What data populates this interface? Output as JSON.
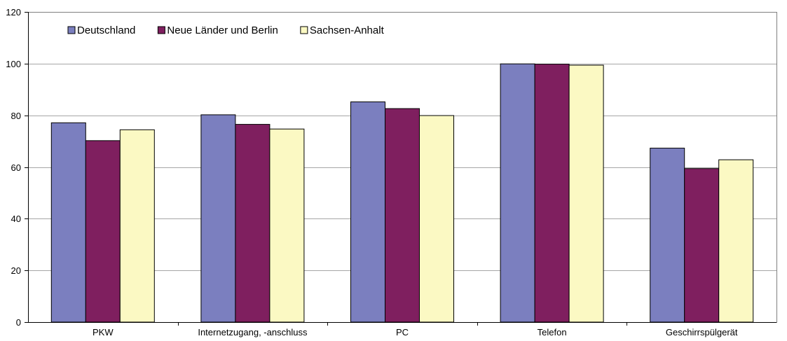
{
  "chart_data": {
    "type": "bar",
    "title": "",
    "xlabel": "",
    "ylabel": "",
    "ylim": [
      0,
      120
    ],
    "yticks": [
      0,
      20,
      40,
      60,
      80,
      100,
      120
    ],
    "grid": true,
    "legend_position": "top-left",
    "categories": [
      "PKW",
      "Internetzugang, -anschluss",
      "PC",
      "Telefon",
      "Geschirrspülgerät"
    ],
    "series": [
      {
        "name": "Deutschland",
        "color": "#7b7fbf",
        "values": [
          77.1,
          80.2,
          85.2,
          99.9,
          67.3
        ]
      },
      {
        "name": "Neue Länder und Berlin",
        "color": "#7f1f5f",
        "values": [
          70.2,
          76.5,
          82.6,
          99.8,
          59.4
        ]
      },
      {
        "name": "Sachsen-Anhalt",
        "color": "#fbf9c3",
        "values": [
          74.4,
          74.7,
          79.9,
          99.4,
          62.8
        ]
      }
    ]
  }
}
